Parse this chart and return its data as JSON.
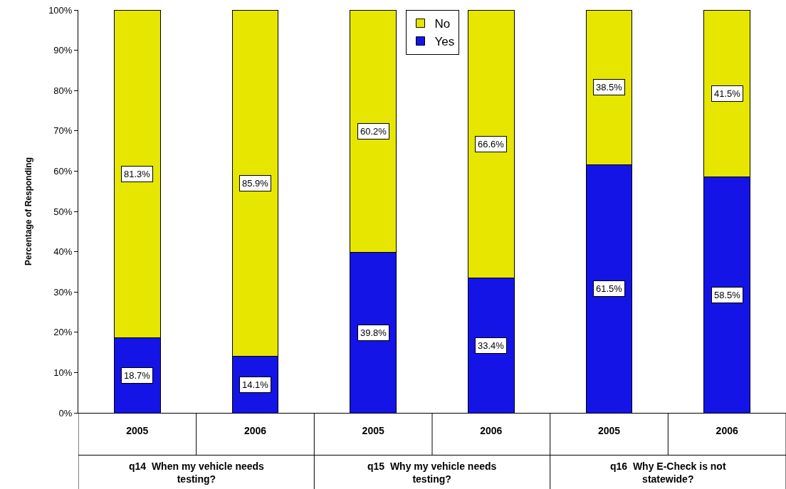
{
  "chart_data": {
    "type": "bar",
    "stacked": true,
    "ylabel": "Percentage of Responding",
    "categories": [
      "2005",
      "2006",
      "2005",
      "2006",
      "2005",
      "2006"
    ],
    "series": [
      {
        "name": "Yes",
        "color": "#1414e6",
        "values": [
          18.7,
          14.1,
          39.8,
          33.4,
          61.5,
          58.5
        ],
        "value_labels": [
          "18.7%",
          "14.1%",
          "39.8%",
          "33.4%",
          "61.5%",
          "58.5%"
        ]
      },
      {
        "name": "No",
        "color": "#e6e600",
        "values": [
          81.3,
          85.9,
          60.2,
          66.6,
          38.5,
          41.5
        ],
        "value_labels": [
          "81.3%",
          "85.9%",
          "60.2%",
          "66.6%",
          "38.5%",
          "41.5%"
        ]
      }
    ],
    "ylim": [
      0,
      100
    ],
    "yticks": [
      {
        "value": 0,
        "label": "0%"
      },
      {
        "value": 10,
        "label": "10%"
      },
      {
        "value": 20,
        "label": "20%"
      },
      {
        "value": 30,
        "label": "30%"
      },
      {
        "value": 40,
        "label": "40%"
      },
      {
        "value": 50,
        "label": "50%"
      },
      {
        "value": 60,
        "label": "60%"
      },
      {
        "value": 70,
        "label": "70%"
      },
      {
        "value": 80,
        "label": "80%"
      },
      {
        "value": 90,
        "label": "90%"
      },
      {
        "value": 100,
        "label": "100%"
      }
    ],
    "legend": "top",
    "grid": false,
    "annotations": [
      "q14  When my vehicle needs testing?",
      "q15  Why my vehicle needs testing?",
      "q16  Why E-Check is not statewide?"
    ]
  }
}
